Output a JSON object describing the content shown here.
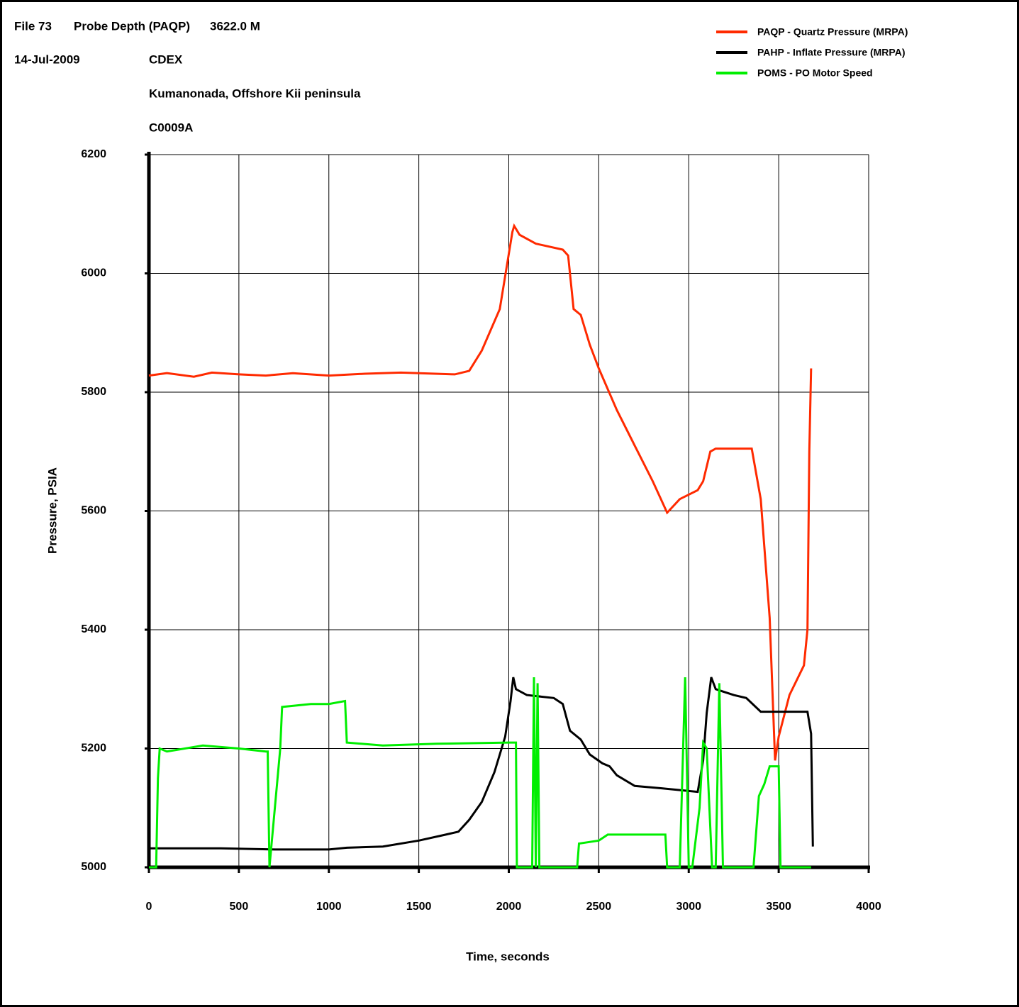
{
  "chart_data": {
    "type": "line",
    "header": [
      "File 73",
      "Probe Depth (PAQP)",
      "3622.0 M",
      "14-Jul-2009",
      "CDEX",
      "Kumanonada, Offshore Kii peninsula",
      "C0009A"
    ],
    "xlabel": "Time, seconds",
    "ylabel": "Pressure, PSIA",
    "xlim": [
      0,
      4000
    ],
    "ylim": [
      5000,
      6200
    ],
    "xticks": [
      0,
      500,
      1000,
      1500,
      2000,
      2500,
      3000,
      3500,
      4000
    ],
    "yticks": [
      5000,
      5200,
      5400,
      5600,
      5800,
      6000,
      6200
    ],
    "grid": true,
    "legend": "upper right",
    "series": [
      {
        "name": "PAQP - Quartz Pressure (MRPA)",
        "color": "#ff2a00",
        "x": [
          0,
          100,
          250,
          350,
          500,
          650,
          800,
          1000,
          1200,
          1400,
          1700,
          1780,
          1850,
          1950,
          2020,
          2030,
          2060,
          2150,
          2300,
          2330,
          2360,
          2400,
          2450,
          2500,
          2600,
          2700,
          2800,
          2880,
          2950,
          3050,
          3080,
          3120,
          3150,
          3350,
          3400,
          3450,
          3480,
          3500,
          3560,
          3640,
          3660,
          3670,
          3680
        ],
        "values": [
          5828,
          5832,
          5826,
          5833,
          5830,
          5828,
          5832,
          5828,
          5831,
          5833,
          5830,
          5836,
          5870,
          5940,
          6070,
          6080,
          6065,
          6050,
          6040,
          6030,
          5940,
          5930,
          5880,
          5840,
          5770,
          5710,
          5650,
          5597,
          5620,
          5635,
          5650,
          5700,
          5705,
          5705,
          5620,
          5420,
          5180,
          5220,
          5290,
          5340,
          5400,
          5700,
          5840
        ]
      },
      {
        "name": "PAHP - Inflate Pressure (MRPA)",
        "color": "#000000",
        "x": [
          0,
          400,
          700,
          1000,
          1100,
          1300,
          1500,
          1650,
          1720,
          1780,
          1850,
          1920,
          1980,
          2010,
          2025,
          2040,
          2100,
          2250,
          2300,
          2340,
          2400,
          2450,
          2520,
          2560,
          2600,
          2700,
          2850,
          2950,
          3050,
          3080,
          3100,
          3125,
          3150,
          3250,
          3320,
          3400,
          3600,
          3660,
          3680,
          3690
        ],
        "values": [
          5032,
          5032,
          5030,
          5030,
          5033,
          5035,
          5045,
          5055,
          5060,
          5080,
          5110,
          5160,
          5220,
          5280,
          5320,
          5300,
          5290,
          5285,
          5275,
          5230,
          5215,
          5190,
          5175,
          5170,
          5155,
          5137,
          5133,
          5130,
          5127,
          5180,
          5260,
          5320,
          5300,
          5290,
          5285,
          5262,
          5262,
          5262,
          5225,
          5035
        ]
      },
      {
        "name": "POMS - PO Motor Speed",
        "color": "#00ee00",
        "x": [
          0,
          40,
          50,
          60,
          100,
          300,
          500,
          650,
          660,
          670,
          700,
          730,
          740,
          900,
          1000,
          1090,
          1100,
          1300,
          1600,
          2000,
          2040,
          2045,
          2130,
          2140,
          2150,
          2160,
          2170,
          2380,
          2390,
          2500,
          2550,
          2700,
          2870,
          2880,
          2950,
          2980,
          3000,
          3020,
          3060,
          3080,
          3100,
          3130,
          3150,
          3170,
          3190,
          3360,
          3390,
          3420,
          3450,
          3500,
          3510,
          3680
        ],
        "values": [
          5000,
          5000,
          5150,
          5200,
          5195,
          5205,
          5200,
          5195,
          5195,
          5000,
          5100,
          5200,
          5270,
          5275,
          5275,
          5280,
          5210,
          5205,
          5208,
          5210,
          5210,
          5000,
          5000,
          5320,
          5000,
          5310,
          5000,
          5000,
          5040,
          5045,
          5055,
          5055,
          5055,
          5000,
          5000,
          5320,
          5000,
          5000,
          5100,
          5210,
          5200,
          5000,
          5000,
          5310,
          5000,
          5000,
          5120,
          5140,
          5170,
          5170,
          5000,
          5000
        ]
      }
    ]
  }
}
